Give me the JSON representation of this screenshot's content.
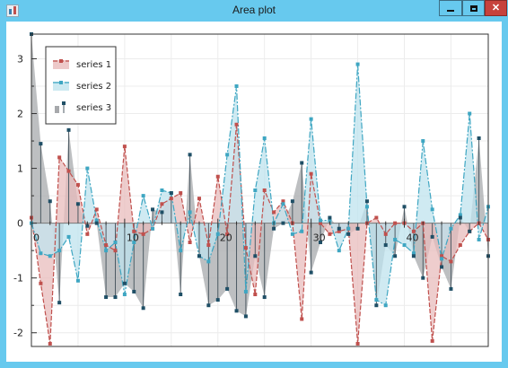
{
  "window": {
    "title": "Area plot",
    "controls": {
      "minimize": "minimize",
      "maximize": "maximize",
      "close": "close"
    }
  },
  "colors": {
    "series1": "#c0504d",
    "series1_fill": "#e8bcbc",
    "series2": "#3ea6c2",
    "series2_fill": "#bfe3ee",
    "series3": "#1f4f66",
    "series3_fill": "#a7a9ac"
  },
  "chart_data": {
    "type": "area",
    "title": "",
    "xlabel": "",
    "ylabel": "",
    "xlim": [
      0,
      49
    ],
    "ylim": [
      -2.25,
      3.45
    ],
    "x_ticks": [
      0,
      10,
      20,
      30,
      40
    ],
    "y_ticks": [
      -2,
      -1,
      0,
      1,
      2,
      3
    ],
    "grid": true,
    "legend": {
      "position": "top-left"
    },
    "x": [
      0,
      1,
      2,
      3,
      4,
      5,
      6,
      7,
      8,
      9,
      10,
      11,
      12,
      13,
      14,
      15,
      16,
      17,
      18,
      19,
      20,
      21,
      22,
      23,
      24,
      25,
      26,
      27,
      28,
      29,
      30,
      31,
      32,
      33,
      34,
      35,
      36,
      37,
      38,
      39,
      40,
      41,
      42,
      43,
      44,
      45,
      46,
      47,
      48,
      49
    ],
    "series": [
      {
        "name": "series 1",
        "style": "dashed line with squares, filled area",
        "values": [
          0.1,
          -1.1,
          -2.2,
          1.2,
          0.95,
          0.7,
          -0.2,
          0.25,
          -0.4,
          -0.5,
          1.4,
          -0.15,
          -0.2,
          -0.1,
          0.35,
          0.45,
          0.55,
          -0.35,
          0.45,
          -0.4,
          0.85,
          -0.2,
          1.8,
          -0.45,
          -1.3,
          0.6,
          0.2,
          0.4,
          0.0,
          -1.75,
          0.9,
          0.0,
          -0.2,
          -0.15,
          -0.1,
          -2.2,
          0.0,
          0.1,
          -0.2,
          0.0,
          0.0,
          -0.15,
          0.0,
          -2.15,
          -0.6,
          -0.7,
          -0.4,
          -0.15,
          0.0,
          -0.3
        ]
      },
      {
        "name": "series 2",
        "style": "dash-dot line with squares, filled area",
        "values": [
          0.0,
          -0.55,
          -0.6,
          -0.5,
          -0.25,
          -1.05,
          1.0,
          0.05,
          -0.5,
          -0.35,
          -1.3,
          -0.35,
          0.5,
          -0.1,
          0.6,
          0.55,
          -0.5,
          0.2,
          -0.6,
          -0.7,
          -0.2,
          1.25,
          2.5,
          -1.25,
          0.6,
          1.55,
          0.0,
          0.35,
          -0.2,
          -0.15,
          1.9,
          0.05,
          0.05,
          -0.5,
          -0.1,
          2.9,
          0.3,
          -1.4,
          -1.5,
          -0.3,
          -0.4,
          -0.55,
          1.5,
          0.25,
          -0.65,
          -0.1,
          0.15,
          2.0,
          -0.3,
          0.3
        ]
      },
      {
        "name": "series 3",
        "style": "vertical stems with squares, gray filled area",
        "values": [
          3.45,
          1.45,
          0.4,
          -1.45,
          1.7,
          0.35,
          -0.05,
          0.0,
          -1.35,
          -1.35,
          -1.1,
          -1.25,
          -1.55,
          0.25,
          0.2,
          0.55,
          -1.3,
          1.25,
          -0.6,
          -1.5,
          -1.4,
          -1.2,
          -1.6,
          -1.7,
          -0.6,
          -1.35,
          -0.1,
          0.0,
          0.4,
          1.1,
          -0.9,
          -0.35,
          0.1,
          -0.1,
          -0.2,
          -0.1,
          0.4,
          -1.5,
          -0.4,
          -0.6,
          0.3,
          -0.6,
          -1.0,
          -0.25,
          -0.8,
          -1.2,
          0.1,
          -0.15,
          1.55,
          -0.6
        ]
      }
    ]
  }
}
